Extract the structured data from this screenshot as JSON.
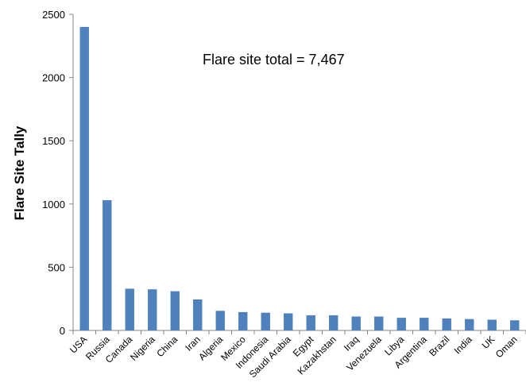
{
  "chart_data": {
    "type": "bar",
    "title": "",
    "xlabel": "",
    "ylabel": "Flare Site Tally",
    "ylim": [
      0,
      2500
    ],
    "yticks": [
      0,
      500,
      1000,
      1500,
      2000,
      2500
    ],
    "grid": false,
    "legend": "none",
    "bar_color": "#4F81BD",
    "annotation": "Flare site total = 7,467",
    "categories": [
      "USA",
      "Russia",
      "Canada",
      "Nigeria",
      "China",
      "Iran",
      "Algeria",
      "Mexico",
      "Indonesia",
      "Saudi Arabia",
      "Egypt",
      "Kazakhstan",
      "Iraq",
      "Venezuela",
      "Libya",
      "Argentina",
      "Brazil",
      "India",
      "UK",
      "Oman"
    ],
    "values": [
      2400,
      1030,
      330,
      325,
      310,
      245,
      155,
      145,
      140,
      135,
      120,
      120,
      110,
      110,
      100,
      100,
      95,
      90,
      85,
      80
    ]
  }
}
